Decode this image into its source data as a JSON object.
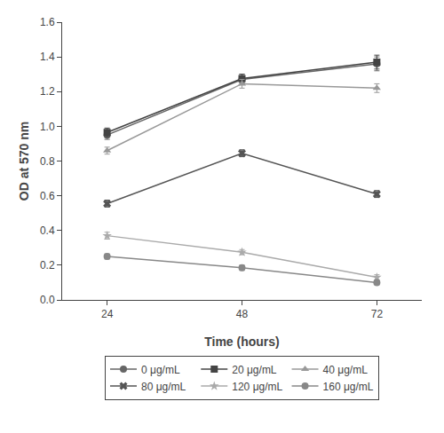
{
  "chart_data": {
    "type": "line",
    "xlabel": "Time (hours)",
    "ylabel": "OD at 570 nm",
    "x": [
      24,
      48,
      72
    ],
    "series": [
      {
        "name": "0 μg/mL",
        "color": "#666666",
        "marker": "circle",
        "values": [
          0.95,
          1.27,
          1.36
        ],
        "errors": [
          0.025,
          0.03,
          0.04
        ]
      },
      {
        "name": "20 μg/mL",
        "color": "#444444",
        "marker": "square",
        "values": [
          0.965,
          1.275,
          1.37
        ],
        "errors": [
          0.025,
          0.025,
          0.04
        ]
      },
      {
        "name": "40 μg/mL",
        "color": "#999999",
        "marker": "triangle-up",
        "values": [
          0.86,
          1.245,
          1.22
        ],
        "errors": [
          0.02,
          0.025,
          0.025
        ]
      },
      {
        "name": "80 μg/mL",
        "color": "#555555",
        "marker": "x",
        "values": [
          0.555,
          0.845,
          0.61
        ],
        "errors": [
          0.02,
          0.02,
          0.02
        ]
      },
      {
        "name": "120 μg/mL",
        "color": "#aaaaaa",
        "marker": "star",
        "values": [
          0.37,
          0.275,
          0.13
        ],
        "errors": [
          0.02,
          0.015,
          0.015
        ]
      },
      {
        "name": "160 μg/mL",
        "color": "#888888",
        "marker": "circle",
        "values": [
          0.25,
          0.185,
          0.1
        ],
        "errors": [
          0.015,
          0.015,
          0.012
        ]
      }
    ],
    "xlim": [
      16,
      80
    ],
    "xticks": [
      24,
      48,
      72
    ],
    "ylim": [
      0,
      1.6
    ],
    "yticks": [
      {
        "value": 0,
        "label": "0.0"
      },
      0.2,
      0.4,
      0.6,
      0.8,
      {
        "value": 1,
        "label": "1.0"
      },
      1.2,
      1.4,
      1.6
    ],
    "grid": false,
    "legend": "bottom"
  }
}
